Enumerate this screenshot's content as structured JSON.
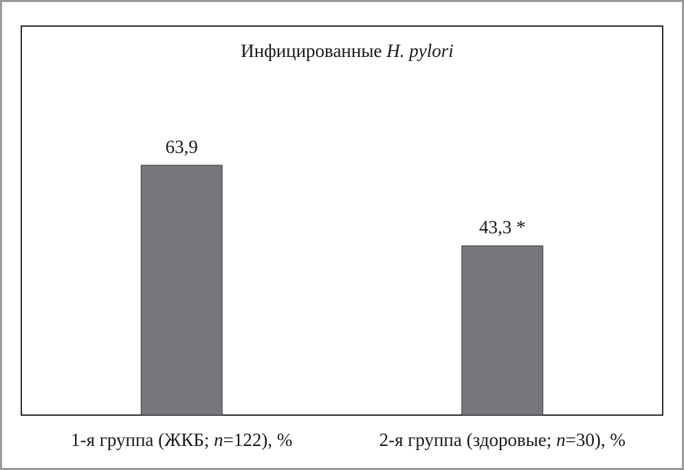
{
  "chart_data": {
    "type": "bar",
    "title": "Инфицированные",
    "title_italic": "H. pylori",
    "categories": [
      {
        "prefix": "1-я группа (ЖКБ; ",
        "n_symbol": "n",
        "suffix": "=122), %"
      },
      {
        "prefix": "2-я группа (здоровые; ",
        "n_symbol": "n",
        "suffix": "=30), %"
      }
    ],
    "values": [
      63.9,
      43.3
    ],
    "value_labels": [
      "63,9",
      "43,3 *"
    ],
    "ylim": [
      0,
      80
    ],
    "grid": false,
    "legend": "none",
    "xlabel": "",
    "ylabel": ""
  },
  "colors": {
    "bar_fill": "#77777b",
    "bar_stroke": "#3a3a3a",
    "frame": "#9a9a9a",
    "plot_border": "#2a2a2a"
  }
}
